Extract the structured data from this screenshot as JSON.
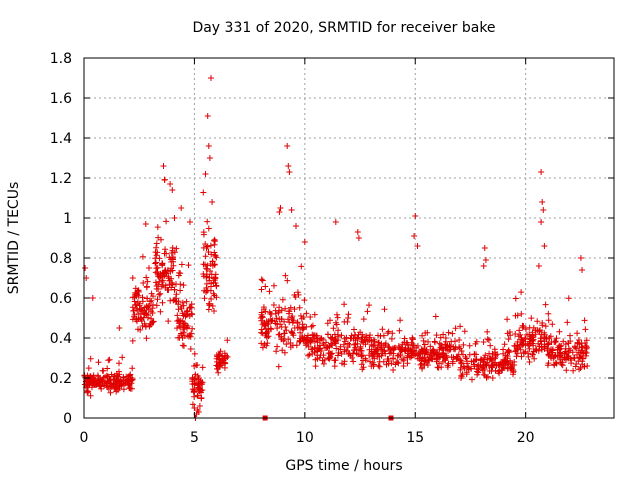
{
  "chart_data": {
    "type": "scatter",
    "title": "Day 331 of 2020, SRMTID for receiver bake",
    "xlabel": "GPS time / hours",
    "ylabel": "SRMTID / TECUs",
    "xlim": [
      0,
      24
    ],
    "ylim": [
      0,
      1.8
    ],
    "xticks": [
      0,
      5,
      10,
      15,
      20
    ],
    "xtick_labels": [
      "0",
      "5",
      "10",
      "15",
      "20"
    ],
    "yticks": [
      0,
      0.2,
      0.4,
      0.6,
      0.8,
      1,
      1.2,
      1.4,
      1.6,
      1.8
    ],
    "ytick_labels": [
      "0",
      "0.2",
      "0.4",
      "0.6",
      "0.8",
      "1",
      "1.2",
      "1.4",
      "1.6",
      "1.8"
    ],
    "grid": true,
    "marker": "+",
    "color": "#e00000",
    "series": [
      {
        "name": "SRMTID",
        "segments": [
          {
            "t0": 0.0,
            "t1": 2.2,
            "center": 0.18,
            "spread": 0.08,
            "n": 170
          },
          {
            "t0": 2.2,
            "t1": 3.2,
            "center": 0.55,
            "spread": 0.25,
            "n": 90
          },
          {
            "t0": 3.2,
            "t1": 4.2,
            "center": 0.72,
            "spread": 0.28,
            "n": 100
          },
          {
            "t0": 4.2,
            "t1": 4.9,
            "center": 0.5,
            "spread": 0.25,
            "n": 70
          },
          {
            "t0": 4.9,
            "t1": 5.4,
            "center": 0.15,
            "spread": 0.12,
            "n": 50
          },
          {
            "t0": 5.4,
            "t1": 6.0,
            "center": 0.7,
            "spread": 0.35,
            "n": 70
          },
          {
            "t0": 6.0,
            "t1": 6.5,
            "center": 0.28,
            "spread": 0.1,
            "n": 40
          },
          {
            "t0": 8.0,
            "t1": 10.0,
            "center": 0.45,
            "spread": 0.22,
            "n": 140
          },
          {
            "t0": 10.0,
            "t1": 13.0,
            "center": 0.36,
            "spread": 0.16,
            "n": 200
          },
          {
            "t0": 13.0,
            "t1": 15.0,
            "center": 0.33,
            "spread": 0.14,
            "n": 140
          },
          {
            "t0": 15.0,
            "t1": 17.0,
            "center": 0.32,
            "spread": 0.13,
            "n": 140
          },
          {
            "t0": 17.0,
            "t1": 19.5,
            "center": 0.27,
            "spread": 0.12,
            "n": 170
          },
          {
            "t0": 19.5,
            "t1": 21.0,
            "center": 0.38,
            "spread": 0.16,
            "n": 110
          },
          {
            "t0": 21.0,
            "t1": 22.8,
            "center": 0.32,
            "spread": 0.15,
            "n": 130
          }
        ],
        "peaks": [
          {
            "x": 5.75,
            "y": 1.7
          },
          {
            "x": 5.6,
            "y": 1.51
          },
          {
            "x": 5.65,
            "y": 1.36
          },
          {
            "x": 5.7,
            "y": 1.3
          },
          {
            "x": 5.5,
            "y": 1.22
          },
          {
            "x": 5.8,
            "y": 1.08
          },
          {
            "x": 3.6,
            "y": 1.26
          },
          {
            "x": 3.65,
            "y": 1.19
          },
          {
            "x": 3.9,
            "y": 1.17
          },
          {
            "x": 4.0,
            "y": 1.14
          },
          {
            "x": 4.4,
            "y": 1.05
          },
          {
            "x": 4.1,
            "y": 1.0
          },
          {
            "x": 2.8,
            "y": 0.97
          },
          {
            "x": 4.8,
            "y": 0.98
          },
          {
            "x": 9.2,
            "y": 1.36
          },
          {
            "x": 9.25,
            "y": 1.26
          },
          {
            "x": 9.3,
            "y": 1.23
          },
          {
            "x": 8.9,
            "y": 1.05
          },
          {
            "x": 8.85,
            "y": 1.03
          },
          {
            "x": 9.4,
            "y": 1.04
          },
          {
            "x": 9.6,
            "y": 0.96
          },
          {
            "x": 10.0,
            "y": 0.88
          },
          {
            "x": 11.4,
            "y": 0.98
          },
          {
            "x": 12.4,
            "y": 0.93
          },
          {
            "x": 12.45,
            "y": 0.9
          },
          {
            "x": 15.0,
            "y": 1.01
          },
          {
            "x": 14.95,
            "y": 0.91
          },
          {
            "x": 15.1,
            "y": 0.86
          },
          {
            "x": 18.15,
            "y": 0.85
          },
          {
            "x": 18.2,
            "y": 0.79
          },
          {
            "x": 18.1,
            "y": 0.76
          },
          {
            "x": 20.7,
            "y": 1.23
          },
          {
            "x": 20.75,
            "y": 1.08
          },
          {
            "x": 20.8,
            "y": 1.04
          },
          {
            "x": 20.7,
            "y": 0.98
          },
          {
            "x": 20.85,
            "y": 0.86
          },
          {
            "x": 20.6,
            "y": 0.76
          },
          {
            "x": 22.5,
            "y": 0.8
          },
          {
            "x": 22.55,
            "y": 0.74
          },
          {
            "x": 0.05,
            "y": 0.75
          },
          {
            "x": 0.1,
            "y": 0.7
          },
          {
            "x": 0.4,
            "y": 0.6
          },
          {
            "x": 1.6,
            "y": 0.45
          }
        ],
        "low_points": [
          {
            "x": 5.05,
            "y": 0.0
          },
          {
            "x": 5.1,
            "y": 0.02
          },
          {
            "x": 5.15,
            "y": 0.04
          },
          {
            "x": 5.2,
            "y": 0.03
          },
          {
            "x": 5.25,
            "y": 0.06
          },
          {
            "x": 5.0,
            "y": 0.05
          }
        ],
        "square_markers": [
          {
            "x": 8.2,
            "y": 0.0
          },
          {
            "x": 13.9,
            "y": 0.0
          }
        ]
      }
    ]
  }
}
